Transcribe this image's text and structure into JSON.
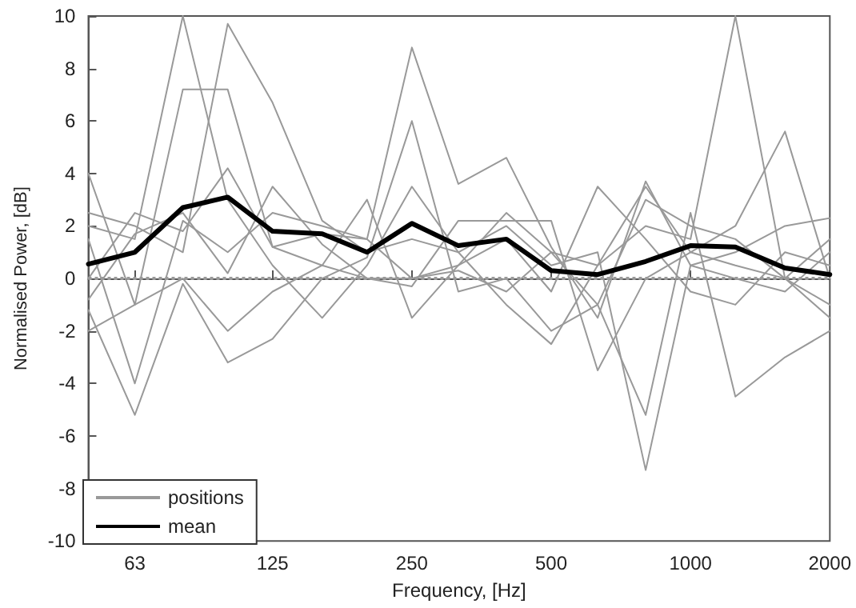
{
  "chart_data": {
    "type": "line",
    "xlabel": "Frequency, [Hz]",
    "ylabel": "Normalised Power, [dB]",
    "log": "x",
    "xlim": [
      50,
      2000
    ],
    "xticks": [
      63,
      125,
      250,
      500,
      1000,
      2000
    ],
    "ylim": [
      -10,
      10
    ],
    "yticks": [
      -10,
      -8,
      -6,
      -4,
      -2,
      0,
      2,
      4,
      6,
      8,
      10
    ],
    "grid": false,
    "legend": "bottom left",
    "marker": "none",
    "line_style": "solid",
    "x": [
      50,
      63,
      80,
      100,
      125,
      160,
      200,
      250,
      315,
      400,
      500,
      630,
      800,
      1000,
      1250,
      1600,
      2000
    ],
    "ref_lines": [
      {
        "axis": "y",
        "value": 0,
        "color": "#999999",
        "line_style": "dotted"
      }
    ],
    "series": [
      {
        "name": "positions",
        "color": "#999999",
        "values": [
          4.0,
          -1.0,
          7.2,
          7.2,
          1.2,
          1.7,
          1.5,
          0.0,
          0.5,
          2.5,
          1.0,
          -1.0,
          3.0,
          2.0,
          1.5,
          0.0,
          -1.0
        ]
      },
      {
        "color": "#999999",
        "values": [
          2.5,
          2.0,
          1.0,
          9.7,
          6.7,
          2.2,
          1.0,
          1.5,
          1.0,
          2.0,
          0.5,
          1.0,
          -7.3,
          0.5,
          0.0,
          -0.5,
          1.0
        ]
      },
      {
        "color": "#999999",
        "values": [
          1.5,
          -4.0,
          2.2,
          1.0,
          2.5,
          2.0,
          1.5,
          8.8,
          3.6,
          4.6,
          1.2,
          -1.5,
          3.7,
          0.5,
          1.0,
          2.0,
          2.3
        ]
      },
      {
        "color": "#999999",
        "values": [
          -1.2,
          -5.2,
          -0.2,
          -3.2,
          -2.3,
          0.0,
          0.8,
          6.0,
          -0.5,
          0.0,
          -2.0,
          -1.0,
          -5.2,
          2.5,
          -4.5,
          -3.0,
          -2.0
        ]
      },
      {
        "color": "#999999",
        "values": [
          0.0,
          2.5,
          1.8,
          4.2,
          1.2,
          0.5,
          0.0,
          0.0,
          0.3,
          -0.5,
          1.0,
          0.5,
          2.0,
          1.5,
          10.0,
          0.0,
          -1.5
        ]
      },
      {
        "color": "#999999",
        "values": [
          -0.8,
          1.7,
          2.5,
          0.2,
          3.5,
          1.3,
          0.0,
          -0.3,
          2.2,
          2.2,
          2.2,
          -3.5,
          0.0,
          1.0,
          2.0,
          5.6,
          0.0
        ]
      },
      {
        "color": "#999999",
        "values": [
          2.0,
          1.5,
          10.0,
          3.0,
          0.5,
          -1.5,
          0.5,
          3.5,
          1.0,
          -1.0,
          -2.5,
          0.5,
          3.5,
          1.0,
          0.5,
          0.0,
          1.5
        ]
      },
      {
        "color": "#999999",
        "values": [
          -2.0,
          -1.0,
          0.0,
          -2.0,
          -0.5,
          0.5,
          3.0,
          -1.5,
          0.5,
          1.5,
          -0.5,
          3.5,
          1.5,
          -0.5,
          -1.0,
          1.0,
          0.5
        ]
      },
      {
        "name": "mean",
        "color": "#000000",
        "values": [
          0.55,
          1.0,
          2.7,
          3.1,
          1.8,
          1.7,
          1.0,
          2.1,
          1.25,
          1.5,
          0.3,
          0.15,
          0.65,
          1.25,
          1.2,
          0.4,
          0.15
        ]
      }
    ]
  }
}
